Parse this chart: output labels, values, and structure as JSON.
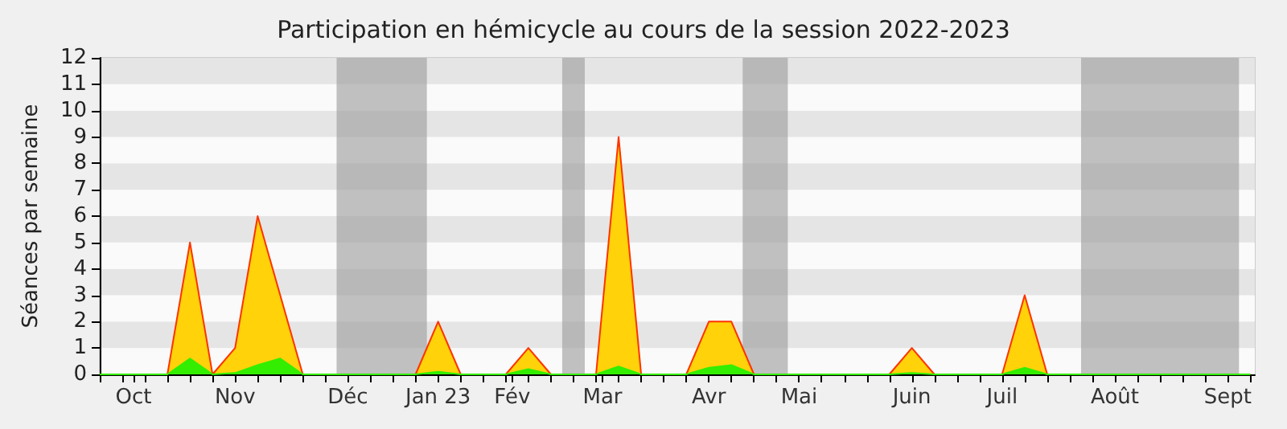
{
  "chart_data": {
    "type": "area",
    "title": "Participation en hémicycle au cours de la session 2022-2023",
    "ylabel": "Séances par semaine",
    "x": [
      "2022-09-26",
      "2022-10-03",
      "2022-10-10",
      "2022-10-17",
      "2022-10-24",
      "2022-10-31",
      "2022-11-07",
      "2022-11-14",
      "2022-11-21",
      "2022-11-28",
      "2022-12-05",
      "2022-12-12",
      "2022-12-19",
      "2022-12-26",
      "2023-01-02",
      "2023-01-09",
      "2023-01-16",
      "2023-01-23",
      "2023-01-30",
      "2023-02-06",
      "2023-02-13",
      "2023-02-20",
      "2023-02-27",
      "2023-03-06",
      "2023-03-13",
      "2023-03-20",
      "2023-03-27",
      "2023-04-03",
      "2023-04-10",
      "2023-04-17",
      "2023-04-24",
      "2023-05-01",
      "2023-05-08",
      "2023-05-15",
      "2023-05-22",
      "2023-05-29",
      "2023-06-05",
      "2023-06-12",
      "2023-06-19",
      "2023-06-26",
      "2023-07-03",
      "2023-07-10",
      "2023-07-17",
      "2023-07-24",
      "2023-07-31",
      "2023-08-07",
      "2023-08-14",
      "2023-08-21",
      "2023-08-28",
      "2023-09-04",
      "2023-09-11",
      "2023-09-18"
    ],
    "series": [
      {
        "color": "#ffd20a",
        "values": [
          0,
          0,
          0,
          0,
          5,
          0,
          1,
          6,
          3,
          0,
          0,
          0,
          0,
          0,
          0,
          2,
          0,
          0,
          0,
          1,
          0,
          0,
          0,
          9,
          0,
          0,
          0,
          2,
          2,
          0,
          0,
          0,
          0,
          0,
          0,
          0,
          1,
          0,
          0,
          0,
          0,
          3,
          0,
          0,
          0,
          0,
          0,
          0,
          0,
          0,
          0,
          0
        ]
      },
      {
        "color": "#33ee00",
        "values": [
          0,
          0,
          0,
          0,
          0.6,
          0,
          0.05,
          0.35,
          0.6,
          0,
          0,
          0,
          0,
          0,
          0,
          0.1,
          0,
          0,
          0,
          0.2,
          0,
          0,
          0,
          0.3,
          0,
          0,
          0,
          0.25,
          0.35,
          0,
          0,
          0,
          0,
          0,
          0,
          0,
          0.05,
          0,
          0,
          0,
          0,
          0.25,
          0,
          0,
          0,
          0,
          0,
          0,
          0,
          0,
          0,
          0
        ]
      }
    ],
    "xlim": [
      "2022-09-26",
      "2023-09-19T10:00"
    ],
    "xticks": [
      {
        "value": "2022-10-06T12:00",
        "label": "Oct"
      },
      {
        "value": "2022-11-07",
        "label": "Nov"
      },
      {
        "value": "2022-12-12",
        "label": "Déc"
      },
      {
        "value": "2023-01-09",
        "label": "Jan 23"
      },
      {
        "value": "2023-02-01",
        "label": "Fév"
      },
      {
        "value": "2023-03-01",
        "label": "Mar"
      },
      {
        "value": "2023-04-03",
        "label": "Avr"
      },
      {
        "value": "2023-05-01",
        "label": "Mai"
      },
      {
        "value": "2023-06-05",
        "label": "Juin"
      },
      {
        "value": "2023-07-03",
        "label": "Juil"
      },
      {
        "value": "2023-08-07",
        "label": "Août"
      },
      {
        "value": "2023-09-11",
        "label": "Sept"
      }
    ],
    "ylim": [
      0,
      12
    ],
    "yticks": [
      0,
      1,
      2,
      3,
      4,
      5,
      6,
      7,
      8,
      9,
      10,
      11,
      12
    ],
    "bands": [
      {
        "axis": "x",
        "from": "2022-12-08T12:00",
        "to": "2023-01-05T12:00",
        "color": "#999999"
      },
      {
        "axis": "x",
        "from": "2023-02-16T12:00",
        "to": "2023-02-23T12:00",
        "color": "#999999"
      },
      {
        "axis": "x",
        "from": "2023-04-13T12:00",
        "to": "2023-04-27T12:00",
        "color": "#999999"
      },
      {
        "axis": "x",
        "from": "2023-07-27T12:00",
        "to": "2023-09-14T12:00",
        "color": "#999999"
      }
    ]
  }
}
